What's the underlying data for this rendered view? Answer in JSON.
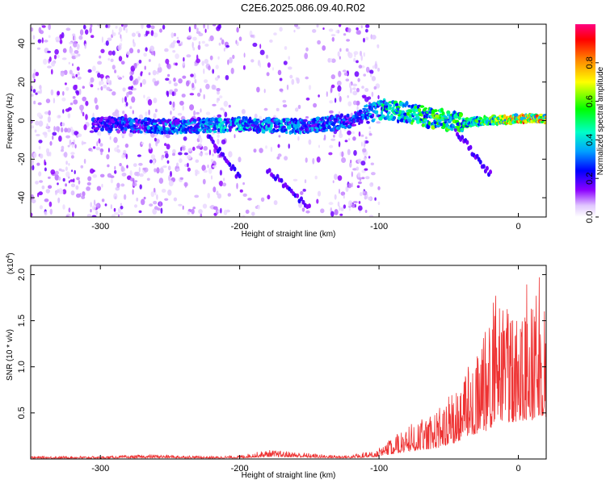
{
  "figure_title": "C2E6.2025.086.09.40.R02",
  "chart_data": [
    {
      "type": "heatmap",
      "xlabel": "Height of straight line (km)",
      "ylabel": "Frequency (Hz)",
      "xlim": [
        -350,
        20
      ],
      "ylim": [
        -50,
        50
      ],
      "x_ticks": [
        -300,
        -200,
        -100,
        0
      ],
      "y_ticks": [
        -40,
        -20,
        0,
        20,
        40
      ],
      "colorbar": {
        "label": "Normalized spectral amplitude",
        "range": [
          0,
          1
        ],
        "ticks": [
          0.0,
          0.2,
          0.4,
          0.6,
          0.8
        ],
        "colormap": [
          "#ffffff",
          "#e0c6ff",
          "#8c00ff",
          "#0000ff",
          "#00a0ff",
          "#00ffc8",
          "#00ff00",
          "#ffff00",
          "#ff8000",
          "#ff0000",
          "#ff0080"
        ]
      },
      "main_band": {
        "description_points_x": [
          -300,
          -250,
          -200,
          -150,
          -120,
          -100,
          -80,
          -60,
          -40,
          -20,
          0,
          20
        ],
        "center_freq": [
          -2,
          -3,
          -2,
          -3,
          0,
          6,
          4,
          1,
          -1,
          0,
          1,
          1
        ],
        "peak_amplitude": [
          0.3,
          0.4,
          0.45,
          0.4,
          0.35,
          0.5,
          0.6,
          0.65,
          0.6,
          0.7,
          0.9,
          0.9
        ]
      }
    },
    {
      "type": "line",
      "xlabel": "Height of straight line (km)",
      "ylabel": "SNR (10 * v/v)",
      "y_multiplier": "(x10",
      "y_multiplier_exp": "4",
      "y_multiplier_close": ")",
      "xlim": [
        -350,
        20
      ],
      "ylim": [
        0,
        2.1
      ],
      "x_ticks": [
        -300,
        -200,
        -100,
        0
      ],
      "y_ticks": [
        0.5,
        1.0,
        1.5,
        2.0
      ],
      "y_tick_labels": [
        "0.5",
        "1.0",
        "1.5",
        "2.0"
      ],
      "color": "#ee3333",
      "series": [
        {
          "x": [
            -350,
            -300,
            -260,
            -220,
            -200,
            -180,
            -160,
            -140,
            -120,
            -100,
            -90,
            -80,
            -70,
            -60,
            -50,
            -40,
            -30,
            -20,
            -15,
            -10,
            -5,
            0,
            5,
            10,
            15,
            20
          ],
          "env": [
            0.03,
            0.03,
            0.05,
            0.03,
            0.04,
            0.1,
            0.08,
            0.05,
            0.04,
            0.1,
            0.22,
            0.3,
            0.4,
            0.45,
            0.6,
            0.85,
            1.05,
            1.3,
            1.8,
            1.6,
            1.5,
            1.55,
            1.7,
            1.65,
            1.9,
            1.8
          ]
        }
      ]
    }
  ]
}
